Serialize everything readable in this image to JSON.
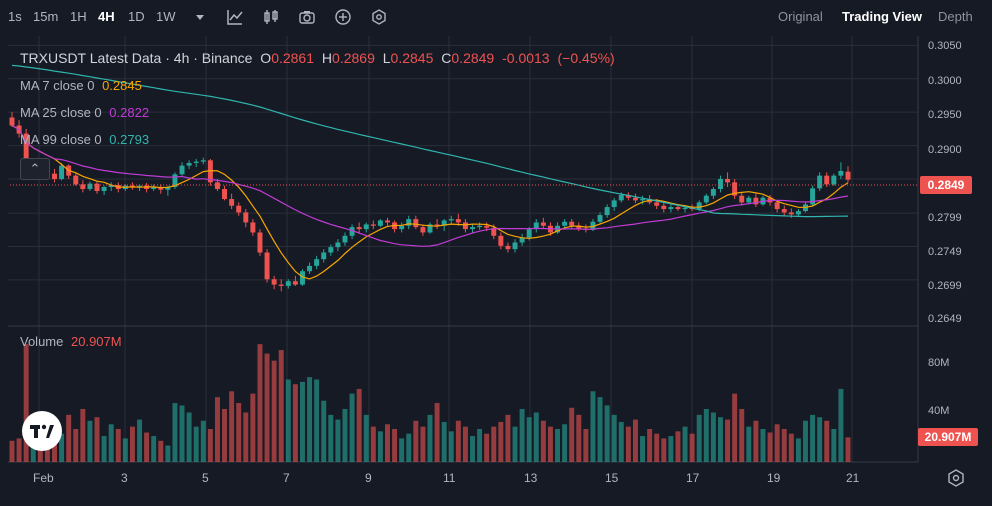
{
  "toolbar": {
    "intervals": [
      "1s",
      "15m",
      "1H",
      "4H",
      "1D",
      "1W"
    ],
    "active_interval": "4H",
    "views": [
      "Original",
      "Trading View",
      "Depth"
    ],
    "active_view": "Trading View"
  },
  "legend": {
    "symbol": "TRXUSDT Latest Data · 4h · Binance",
    "open_label": "O",
    "open": "0.2861",
    "high_label": "H",
    "high": "0.2869",
    "low_label": "L",
    "low": "0.2845",
    "close_label": "C",
    "close": "0.2849",
    "change": "-0.0013",
    "change_pct": "(−0.45%)",
    "ma7_label": "MA 7 close 0",
    "ma7_value": "0.2845",
    "ma25_label": "MA 25 close 0",
    "ma25_value": "0.2822",
    "ma99_label": "MA 99 close 0",
    "ma99_value": "0.2793",
    "volume_label": "Volume",
    "volume_value": "20.907M"
  },
  "price_axis": [
    "0.3050",
    "0.3000",
    "0.2950",
    "0.2900",
    "0.2799",
    "0.2749",
    "0.2699",
    "0.2649"
  ],
  "last_price": "0.2849",
  "volume_axis": [
    "80M",
    "40M"
  ],
  "last_volume": "20.907M",
  "date_axis": [
    "Feb",
    "3",
    "5",
    "7",
    "9",
    "11",
    "13",
    "15",
    "17",
    "19",
    "21"
  ],
  "colors": {
    "up": "#26a69a",
    "down": "#ef5350",
    "ma7": "#f7a600",
    "ma25": "#c13bd6",
    "ma99": "#2fb5ad",
    "bg": "#161a25",
    "grid": "#2a2e39"
  },
  "chart_data": {
    "type": "candlestick",
    "title": "TRXUSDT Latest Data · 4h · Binance",
    "x_range_days": [
      1.4,
      21.0
    ],
    "ylim": [
      0.2636,
      0.3058
    ],
    "volume_ylim": [
      0,
      112
    ],
    "candles": [
      {
        "o": 0.2942,
        "h": 0.295,
        "l": 0.2928,
        "c": 0.293,
        "v": 18
      },
      {
        "o": 0.293,
        "h": 0.2938,
        "l": 0.2912,
        "c": 0.2918,
        "v": 20
      },
      {
        "o": 0.2918,
        "h": 0.2925,
        "l": 0.2858,
        "c": 0.2866,
        "v": 100
      },
      {
        "o": 0.2866,
        "h": 0.288,
        "l": 0.2855,
        "c": 0.2872,
        "v": 30
      },
      {
        "o": 0.2872,
        "h": 0.2878,
        "l": 0.286,
        "c": 0.2868,
        "v": 22
      },
      {
        "o": 0.2868,
        "h": 0.2872,
        "l": 0.2855,
        "c": 0.2858,
        "v": 25
      },
      {
        "o": 0.2858,
        "h": 0.2865,
        "l": 0.2845,
        "c": 0.285,
        "v": 32
      },
      {
        "o": 0.285,
        "h": 0.2874,
        "l": 0.2848,
        "c": 0.287,
        "v": 24
      },
      {
        "o": 0.287,
        "h": 0.2872,
        "l": 0.285,
        "c": 0.2855,
        "v": 40
      },
      {
        "o": 0.2855,
        "h": 0.2858,
        "l": 0.284,
        "c": 0.2842,
        "v": 28
      },
      {
        "o": 0.2842,
        "h": 0.2848,
        "l": 0.283,
        "c": 0.2835,
        "v": 45
      },
      {
        "o": 0.2835,
        "h": 0.2846,
        "l": 0.2832,
        "c": 0.2843,
        "v": 35
      },
      {
        "o": 0.2843,
        "h": 0.2846,
        "l": 0.2828,
        "c": 0.2832,
        "v": 38
      },
      {
        "o": 0.2832,
        "h": 0.284,
        "l": 0.2826,
        "c": 0.2838,
        "v": 22
      },
      {
        "o": 0.2838,
        "h": 0.2845,
        "l": 0.2832,
        "c": 0.2841,
        "v": 32
      },
      {
        "o": 0.2841,
        "h": 0.2845,
        "l": 0.283,
        "c": 0.2835,
        "v": 28
      },
      {
        "o": 0.2835,
        "h": 0.2842,
        "l": 0.2832,
        "c": 0.284,
        "v": 20
      },
      {
        "o": 0.284,
        "h": 0.2845,
        "l": 0.2834,
        "c": 0.2838,
        "v": 30
      },
      {
        "o": 0.2838,
        "h": 0.2842,
        "l": 0.2832,
        "c": 0.284,
        "v": 36
      },
      {
        "o": 0.284,
        "h": 0.2844,
        "l": 0.283,
        "c": 0.2835,
        "v": 25
      },
      {
        "o": 0.2835,
        "h": 0.2842,
        "l": 0.2832,
        "c": 0.2838,
        "v": 22
      },
      {
        "o": 0.2838,
        "h": 0.2842,
        "l": 0.2828,
        "c": 0.2834,
        "v": 18
      },
      {
        "o": 0.2834,
        "h": 0.284,
        "l": 0.2825,
        "c": 0.2838,
        "v": 14
      },
      {
        "o": 0.2838,
        "h": 0.286,
        "l": 0.2835,
        "c": 0.2857,
        "v": 50
      },
      {
        "o": 0.2857,
        "h": 0.2875,
        "l": 0.2855,
        "c": 0.287,
        "v": 48
      },
      {
        "o": 0.287,
        "h": 0.2878,
        "l": 0.2865,
        "c": 0.2874,
        "v": 42
      },
      {
        "o": 0.2874,
        "h": 0.288,
        "l": 0.2868,
        "c": 0.2876,
        "v": 30
      },
      {
        "o": 0.2876,
        "h": 0.2882,
        "l": 0.2872,
        "c": 0.2878,
        "v": 35
      },
      {
        "o": 0.2878,
        "h": 0.288,
        "l": 0.284,
        "c": 0.2845,
        "v": 28
      },
      {
        "o": 0.2845,
        "h": 0.285,
        "l": 0.2832,
        "c": 0.2835,
        "v": 55
      },
      {
        "o": 0.2835,
        "h": 0.284,
        "l": 0.2818,
        "c": 0.282,
        "v": 45
      },
      {
        "o": 0.282,
        "h": 0.2828,
        "l": 0.2805,
        "c": 0.281,
        "v": 60
      },
      {
        "o": 0.281,
        "h": 0.2815,
        "l": 0.2795,
        "c": 0.28,
        "v": 50
      },
      {
        "o": 0.28,
        "h": 0.2805,
        "l": 0.2778,
        "c": 0.2785,
        "v": 42
      },
      {
        "o": 0.2785,
        "h": 0.279,
        "l": 0.2765,
        "c": 0.277,
        "v": 58
      },
      {
        "o": 0.277,
        "h": 0.2775,
        "l": 0.2735,
        "c": 0.274,
        "v": 100
      },
      {
        "o": 0.274,
        "h": 0.2745,
        "l": 0.2695,
        "c": 0.27,
        "v": 92
      },
      {
        "o": 0.27,
        "h": 0.2705,
        "l": 0.2685,
        "c": 0.2692,
        "v": 86
      },
      {
        "o": 0.2692,
        "h": 0.27,
        "l": 0.2682,
        "c": 0.269,
        "v": 95
      },
      {
        "o": 0.269,
        "h": 0.27,
        "l": 0.2686,
        "c": 0.2697,
        "v": 70
      },
      {
        "o": 0.2697,
        "h": 0.2705,
        "l": 0.269,
        "c": 0.2692,
        "v": 66
      },
      {
        "o": 0.2692,
        "h": 0.2715,
        "l": 0.269,
        "c": 0.2712,
        "v": 68
      },
      {
        "o": 0.2712,
        "h": 0.2725,
        "l": 0.2708,
        "c": 0.272,
        "v": 72
      },
      {
        "o": 0.272,
        "h": 0.2735,
        "l": 0.2715,
        "c": 0.273,
        "v": 70
      },
      {
        "o": 0.273,
        "h": 0.2745,
        "l": 0.2725,
        "c": 0.274,
        "v": 52
      },
      {
        "o": 0.274,
        "h": 0.2752,
        "l": 0.2735,
        "c": 0.2748,
        "v": 40
      },
      {
        "o": 0.2748,
        "h": 0.276,
        "l": 0.2742,
        "c": 0.2755,
        "v": 36
      },
      {
        "o": 0.2755,
        "h": 0.277,
        "l": 0.275,
        "c": 0.2765,
        "v": 45
      },
      {
        "o": 0.2765,
        "h": 0.2782,
        "l": 0.276,
        "c": 0.2778,
        "v": 58
      },
      {
        "o": 0.2778,
        "h": 0.2785,
        "l": 0.2768,
        "c": 0.2775,
        "v": 62
      },
      {
        "o": 0.2775,
        "h": 0.2785,
        "l": 0.277,
        "c": 0.2782,
        "v": 40
      },
      {
        "o": 0.2782,
        "h": 0.2788,
        "l": 0.2775,
        "c": 0.278,
        "v": 30
      },
      {
        "o": 0.278,
        "h": 0.279,
        "l": 0.2778,
        "c": 0.2788,
        "v": 26
      },
      {
        "o": 0.2788,
        "h": 0.2792,
        "l": 0.278,
        "c": 0.2785,
        "v": 32
      },
      {
        "o": 0.2785,
        "h": 0.2788,
        "l": 0.277,
        "c": 0.2775,
        "v": 28
      },
      {
        "o": 0.2775,
        "h": 0.2785,
        "l": 0.277,
        "c": 0.278,
        "v": 20
      },
      {
        "o": 0.278,
        "h": 0.2795,
        "l": 0.2775,
        "c": 0.279,
        "v": 24
      },
      {
        "o": 0.279,
        "h": 0.2795,
        "l": 0.2775,
        "c": 0.2778,
        "v": 35
      },
      {
        "o": 0.2778,
        "h": 0.2782,
        "l": 0.2765,
        "c": 0.277,
        "v": 30
      },
      {
        "o": 0.277,
        "h": 0.2785,
        "l": 0.2768,
        "c": 0.2782,
        "v": 40
      },
      {
        "o": 0.2782,
        "h": 0.279,
        "l": 0.2775,
        "c": 0.278,
        "v": 50
      },
      {
        "o": 0.278,
        "h": 0.279,
        "l": 0.2772,
        "c": 0.2788,
        "v": 34
      },
      {
        "o": 0.2788,
        "h": 0.2795,
        "l": 0.2782,
        "c": 0.279,
        "v": 26
      },
      {
        "o": 0.279,
        "h": 0.2798,
        "l": 0.278,
        "c": 0.2785,
        "v": 35
      },
      {
        "o": 0.2785,
        "h": 0.279,
        "l": 0.277,
        "c": 0.2775,
        "v": 30
      },
      {
        "o": 0.2775,
        "h": 0.2782,
        "l": 0.277,
        "c": 0.2778,
        "v": 22
      },
      {
        "o": 0.2778,
        "h": 0.2785,
        "l": 0.2774,
        "c": 0.278,
        "v": 28
      },
      {
        "o": 0.278,
        "h": 0.2785,
        "l": 0.2772,
        "c": 0.2777,
        "v": 24
      },
      {
        "o": 0.2777,
        "h": 0.2782,
        "l": 0.276,
        "c": 0.2765,
        "v": 30
      },
      {
        "o": 0.2765,
        "h": 0.277,
        "l": 0.2745,
        "c": 0.275,
        "v": 34
      },
      {
        "o": 0.275,
        "h": 0.2755,
        "l": 0.274,
        "c": 0.2745,
        "v": 40
      },
      {
        "o": 0.2745,
        "h": 0.276,
        "l": 0.274,
        "c": 0.2755,
        "v": 30
      },
      {
        "o": 0.2755,
        "h": 0.2768,
        "l": 0.275,
        "c": 0.2762,
        "v": 45
      },
      {
        "o": 0.2762,
        "h": 0.2778,
        "l": 0.2758,
        "c": 0.2775,
        "v": 38
      },
      {
        "o": 0.2775,
        "h": 0.279,
        "l": 0.277,
        "c": 0.2785,
        "v": 42
      },
      {
        "o": 0.2785,
        "h": 0.2792,
        "l": 0.2775,
        "c": 0.278,
        "v": 35
      },
      {
        "o": 0.278,
        "h": 0.2785,
        "l": 0.2765,
        "c": 0.277,
        "v": 30
      },
      {
        "o": 0.277,
        "h": 0.2785,
        "l": 0.2768,
        "c": 0.278,
        "v": 28
      },
      {
        "o": 0.278,
        "h": 0.279,
        "l": 0.2775,
        "c": 0.2786,
        "v": 32
      },
      {
        "o": 0.2786,
        "h": 0.279,
        "l": 0.2776,
        "c": 0.278,
        "v": 46
      },
      {
        "o": 0.278,
        "h": 0.2785,
        "l": 0.2772,
        "c": 0.2776,
        "v": 40
      },
      {
        "o": 0.2776,
        "h": 0.2782,
        "l": 0.277,
        "c": 0.2774,
        "v": 28
      },
      {
        "o": 0.2774,
        "h": 0.279,
        "l": 0.2772,
        "c": 0.2786,
        "v": 60
      },
      {
        "o": 0.2786,
        "h": 0.28,
        "l": 0.2782,
        "c": 0.2796,
        "v": 55
      },
      {
        "o": 0.2796,
        "h": 0.2812,
        "l": 0.2792,
        "c": 0.2808,
        "v": 48
      },
      {
        "o": 0.2808,
        "h": 0.2822,
        "l": 0.2802,
        "c": 0.2818,
        "v": 40
      },
      {
        "o": 0.2818,
        "h": 0.283,
        "l": 0.2815,
        "c": 0.2826,
        "v": 34
      },
      {
        "o": 0.2826,
        "h": 0.283,
        "l": 0.2818,
        "c": 0.2822,
        "v": 30
      },
      {
        "o": 0.2822,
        "h": 0.2828,
        "l": 0.2814,
        "c": 0.2818,
        "v": 36
      },
      {
        "o": 0.2818,
        "h": 0.2825,
        "l": 0.2812,
        "c": 0.282,
        "v": 22
      },
      {
        "o": 0.282,
        "h": 0.2826,
        "l": 0.2812,
        "c": 0.2815,
        "v": 28
      },
      {
        "o": 0.2815,
        "h": 0.282,
        "l": 0.2805,
        "c": 0.281,
        "v": 24
      },
      {
        "o": 0.281,
        "h": 0.2815,
        "l": 0.28,
        "c": 0.2805,
        "v": 20
      },
      {
        "o": 0.2805,
        "h": 0.2812,
        "l": 0.28,
        "c": 0.2808,
        "v": 22
      },
      {
        "o": 0.2808,
        "h": 0.2812,
        "l": 0.2802,
        "c": 0.2805,
        "v": 26
      },
      {
        "o": 0.2805,
        "h": 0.281,
        "l": 0.28,
        "c": 0.2807,
        "v": 30
      },
      {
        "o": 0.2807,
        "h": 0.2812,
        "l": 0.2802,
        "c": 0.2805,
        "v": 24
      },
      {
        "o": 0.2805,
        "h": 0.2818,
        "l": 0.2802,
        "c": 0.2815,
        "v": 40
      },
      {
        "o": 0.2815,
        "h": 0.2828,
        "l": 0.2812,
        "c": 0.2825,
        "v": 45
      },
      {
        "o": 0.2825,
        "h": 0.2838,
        "l": 0.282,
        "c": 0.2835,
        "v": 42
      },
      {
        "o": 0.2835,
        "h": 0.2855,
        "l": 0.283,
        "c": 0.285,
        "v": 38
      },
      {
        "o": 0.285,
        "h": 0.286,
        "l": 0.2838,
        "c": 0.2845,
        "v": 36
      },
      {
        "o": 0.2845,
        "h": 0.285,
        "l": 0.282,
        "c": 0.2825,
        "v": 58
      },
      {
        "o": 0.2825,
        "h": 0.283,
        "l": 0.281,
        "c": 0.2815,
        "v": 45
      },
      {
        "o": 0.2815,
        "h": 0.2825,
        "l": 0.2812,
        "c": 0.2822,
        "v": 30
      },
      {
        "o": 0.2822,
        "h": 0.2828,
        "l": 0.2808,
        "c": 0.2812,
        "v": 35
      },
      {
        "o": 0.2812,
        "h": 0.2825,
        "l": 0.281,
        "c": 0.2822,
        "v": 28
      },
      {
        "o": 0.2822,
        "h": 0.2826,
        "l": 0.281,
        "c": 0.2815,
        "v": 25
      },
      {
        "o": 0.2815,
        "h": 0.2818,
        "l": 0.28,
        "c": 0.2805,
        "v": 32
      },
      {
        "o": 0.2805,
        "h": 0.281,
        "l": 0.2795,
        "c": 0.28,
        "v": 28
      },
      {
        "o": 0.28,
        "h": 0.2806,
        "l": 0.2792,
        "c": 0.2797,
        "v": 24
      },
      {
        "o": 0.2797,
        "h": 0.2805,
        "l": 0.2794,
        "c": 0.2802,
        "v": 20
      },
      {
        "o": 0.2802,
        "h": 0.2815,
        "l": 0.28,
        "c": 0.2812,
        "v": 35
      },
      {
        "o": 0.2812,
        "h": 0.284,
        "l": 0.281,
        "c": 0.2836,
        "v": 40
      },
      {
        "o": 0.2836,
        "h": 0.286,
        "l": 0.2832,
        "c": 0.2855,
        "v": 38
      },
      {
        "o": 0.2855,
        "h": 0.286,
        "l": 0.2838,
        "c": 0.2842,
        "v": 35
      },
      {
        "o": 0.2842,
        "h": 0.2858,
        "l": 0.284,
        "c": 0.2855,
        "v": 28
      },
      {
        "o": 0.2855,
        "h": 0.2875,
        "l": 0.285,
        "c": 0.2862,
        "v": 62
      },
      {
        "o": 0.2861,
        "h": 0.2869,
        "l": 0.2845,
        "c": 0.2849,
        "v": 20.907
      }
    ]
  }
}
